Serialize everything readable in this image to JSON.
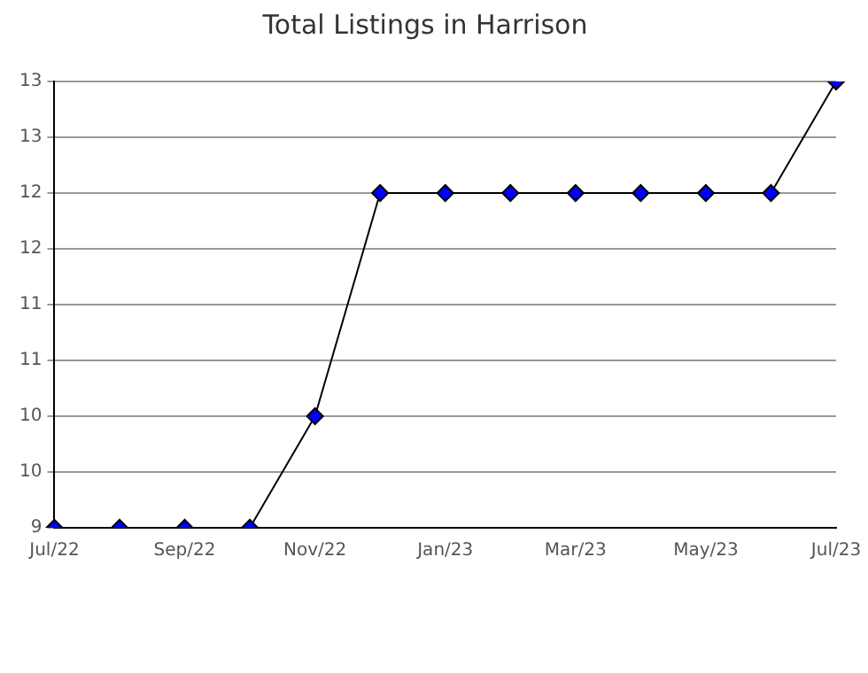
{
  "chart_data": {
    "type": "line",
    "title": "Total Listings in Harrison",
    "categories": [
      "Jul/22",
      null,
      "Sep/22",
      null,
      "Nov/22",
      null,
      "Jan/23",
      null,
      "Mar/23",
      null,
      "May/23",
      null,
      "Jul/23"
    ],
    "series": [
      {
        "color": "#0000ff",
        "values": [
          9,
          9,
          9,
          9,
          10,
          12,
          12,
          12,
          12,
          12,
          12,
          12,
          13
        ]
      }
    ],
    "ylim": [
      9,
      13
    ],
    "yticks": [
      9,
      {
        "value": 9.5,
        "label": "10"
      },
      10,
      {
        "value": 10.5,
        "label": "11"
      },
      11,
      {
        "value": 11.5,
        "label": "12"
      },
      12,
      {
        "value": 12.5,
        "label": "13"
      },
      13
    ],
    "grid": "y",
    "marker": "diamond",
    "line_style": "solid",
    "legend": false
  }
}
